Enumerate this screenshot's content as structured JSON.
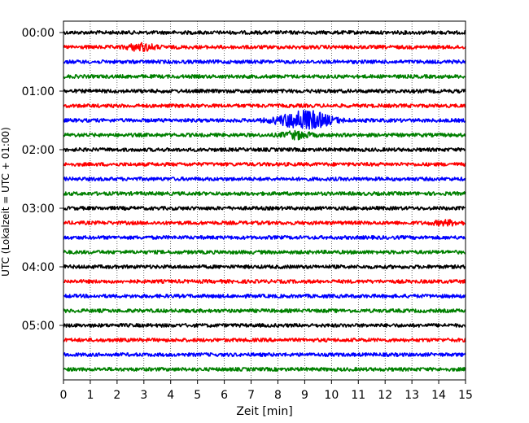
{
  "chart_data": {
    "type": "line",
    "chart_kind": "seismic helicorder",
    "xlabel": "Zeit  [min]",
    "ylabel": "UTC (Lokalzeit = UTC + 01:00)",
    "xlim": [
      0,
      15
    ],
    "x_ticks": [
      0,
      1,
      2,
      3,
      4,
      5,
      6,
      7,
      8,
      9,
      10,
      11,
      12,
      13,
      14,
      15
    ],
    "y_ticks": [
      "00:00",
      "01:00",
      "02:00",
      "03:00",
      "04:00",
      "05:00"
    ],
    "grid": "vertical dotted lines at each minute",
    "trace_interval_min": 15,
    "trace_count": 24,
    "trace_colors": [
      "#000000",
      "#ff0000",
      "#0000ff",
      "#008000"
    ],
    "traces": [
      {
        "start": "00:00",
        "events": []
      },
      {
        "start": "00:15",
        "events": [
          {
            "t_min": 2.9,
            "amplitude": 1.2
          }
        ]
      },
      {
        "start": "00:30",
        "events": []
      },
      {
        "start": "00:45",
        "events": []
      },
      {
        "start": "01:00",
        "events": []
      },
      {
        "start": "01:15",
        "events": []
      },
      {
        "start": "01:30",
        "events": [
          {
            "t_min": 9.0,
            "amplitude": 3.5
          }
        ]
      },
      {
        "start": "01:45",
        "events": [
          {
            "t_min": 8.7,
            "amplitude": 1.2
          }
        ]
      },
      {
        "start": "02:00",
        "events": []
      },
      {
        "start": "02:15",
        "events": []
      },
      {
        "start": "02:30",
        "events": []
      },
      {
        "start": "02:45",
        "events": []
      },
      {
        "start": "03:00",
        "events": []
      },
      {
        "start": "03:15",
        "events": [
          {
            "t_min": 14.3,
            "amplitude": 0.7
          }
        ]
      },
      {
        "start": "03:30",
        "events": []
      },
      {
        "start": "03:45",
        "events": []
      },
      {
        "start": "04:00",
        "events": []
      },
      {
        "start": "04:15",
        "events": []
      },
      {
        "start": "04:30",
        "events": []
      },
      {
        "start": "04:45",
        "events": []
      },
      {
        "start": "05:00",
        "events": []
      },
      {
        "start": "05:15",
        "events": []
      },
      {
        "start": "05:30",
        "events": []
      },
      {
        "start": "05:45",
        "events": []
      }
    ]
  }
}
